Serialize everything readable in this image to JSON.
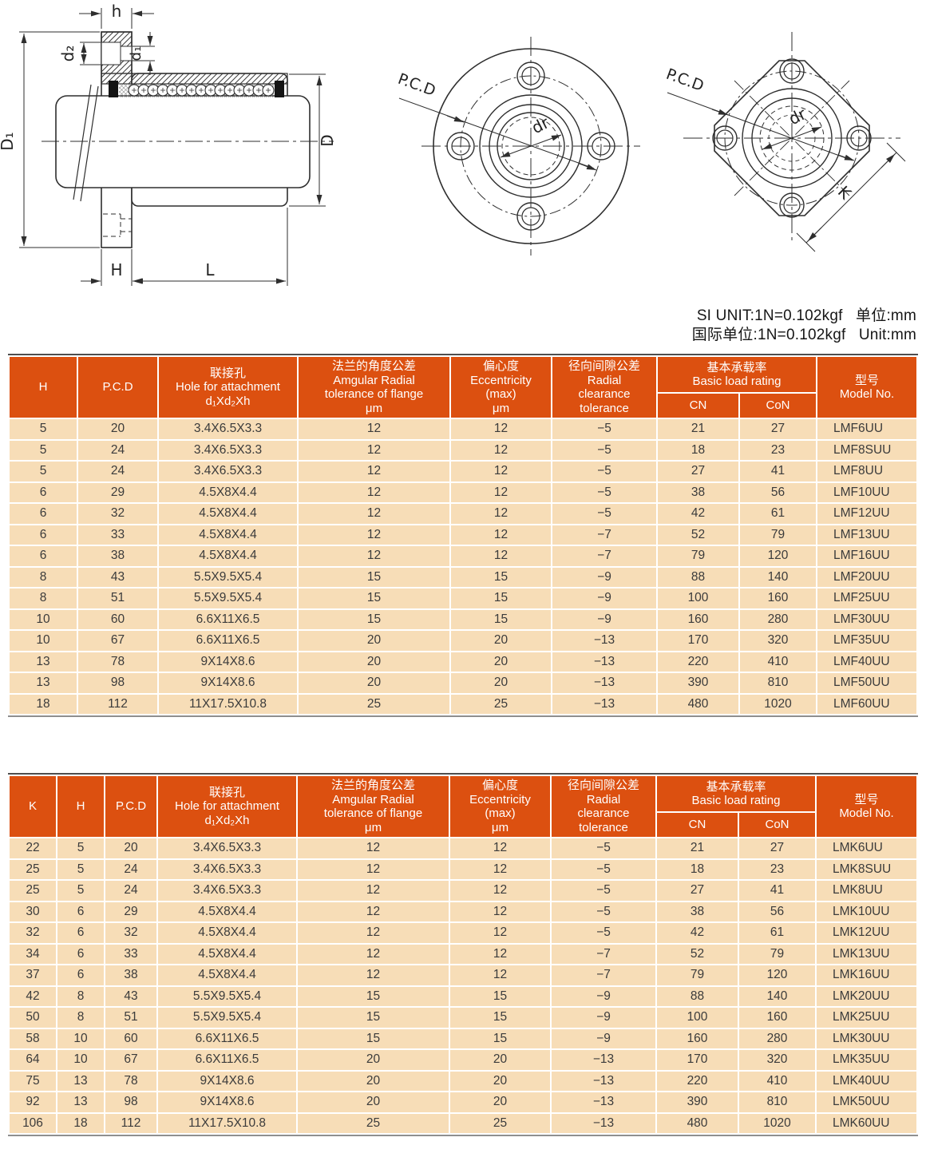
{
  "unit_note": {
    "line1": "SI UNIT:1N=0.102kgf   单位:mm",
    "line2": "国际单位:1N=0.102kgf   Unit:mm"
  },
  "colors": {
    "header_bg": "#DC5010",
    "row_bg": "#F7DDB7",
    "header_text": "#FFFFFF",
    "body_text": "#3B3B3B"
  },
  "drawing_labels": {
    "h": "h",
    "d2": "d₂",
    "d1": "d₁",
    "D1": "D₁",
    "D": "D",
    "H": "H",
    "L": "L",
    "pcd_round": "P.C.D",
    "dr_round": "dr",
    "pcd_square": "P.C.D",
    "dr_square": "dr",
    "K": "K"
  },
  "table_lmf": {
    "columns": {
      "h": "H",
      "pcd": "P.C.D",
      "hole": "联接孔\nHole for attachment\nd₁Xd₂Xh",
      "angular": "法兰的角度公差\nAmgular Radial\ntolerance of flange\nμm",
      "eccentricity": "偏心度\nEccentricity\n(max)\nμm",
      "radial": "径向间隙公差\nRadial\nclearance\ntolerance",
      "basic_load": "基本承载率\nBasic load rating",
      "cn": "CN",
      "con": "CoN",
      "model": "型号\nModel No."
    },
    "rows": [
      [
        "5",
        "20",
        "3.4X6.5X3.3",
        "12",
        "12",
        "−5",
        "21",
        "27",
        "LMF6UU"
      ],
      [
        "5",
        "24",
        "3.4X6.5X3.3",
        "12",
        "12",
        "−5",
        "18",
        "23",
        "LMF8SUU"
      ],
      [
        "5",
        "24",
        "3.4X6.5X3.3",
        "12",
        "12",
        "−5",
        "27",
        "41",
        "LMF8UU"
      ],
      [
        "6",
        "29",
        "4.5X8X4.4",
        "12",
        "12",
        "−5",
        "38",
        "56",
        "LMF10UU"
      ],
      [
        "6",
        "32",
        "4.5X8X4.4",
        "12",
        "12",
        "−5",
        "42",
        "61",
        "LMF12UU"
      ],
      [
        "6",
        "33",
        "4.5X8X4.4",
        "12",
        "12",
        "−7",
        "52",
        "79",
        "LMF13UU"
      ],
      [
        "6",
        "38",
        "4.5X8X4.4",
        "12",
        "12",
        "−7",
        "79",
        "120",
        "LMF16UU"
      ],
      [
        "8",
        "43",
        "5.5X9.5X5.4",
        "15",
        "15",
        "−9",
        "88",
        "140",
        "LMF20UU"
      ],
      [
        "8",
        "51",
        "5.5X9.5X5.4",
        "15",
        "15",
        "−9",
        "100",
        "160",
        "LMF25UU"
      ],
      [
        "10",
        "60",
        "6.6X11X6.5",
        "15",
        "15",
        "−9",
        "160",
        "280",
        "LMF30UU"
      ],
      [
        "10",
        "67",
        "6.6X11X6.5",
        "20",
        "20",
        "−13",
        "170",
        "320",
        "LMF35UU"
      ],
      [
        "13",
        "78",
        "9X14X8.6",
        "20",
        "20",
        "−13",
        "220",
        "410",
        "LMF40UU"
      ],
      [
        "13",
        "98",
        "9X14X8.6",
        "20",
        "20",
        "−13",
        "390",
        "810",
        "LMF50UU"
      ],
      [
        "18",
        "112",
        "11X17.5X10.8",
        "25",
        "25",
        "−13",
        "480",
        "1020",
        "LMF60UU"
      ]
    ]
  },
  "table_lmk": {
    "columns": {
      "k": "K",
      "h": "H",
      "pcd": "P.C.D",
      "hole": "联接孔\nHole for attachment\nd₁Xd₂Xh",
      "angular": "法兰的角度公差\nAmgular Radial\ntolerance of flange\nμm",
      "eccentricity": "偏心度\nEccentricity\n(max)\nμm",
      "radial": "径向间隙公差\nRadial\nclearance\ntolerance",
      "basic_load": "基本承载率\nBasic load rating",
      "cn": "CN",
      "con": "CoN",
      "model": "型号\nModel No."
    },
    "rows": [
      [
        "22",
        "5",
        "20",
        "3.4X6.5X3.3",
        "12",
        "12",
        "−5",
        "21",
        "27",
        "LMK6UU"
      ],
      [
        "25",
        "5",
        "24",
        "3.4X6.5X3.3",
        "12",
        "12",
        "−5",
        "18",
        "23",
        "LMK8SUU"
      ],
      [
        "25",
        "5",
        "24",
        "3.4X6.5X3.3",
        "12",
        "12",
        "−5",
        "27",
        "41",
        "LMK8UU"
      ],
      [
        "30",
        "6",
        "29",
        "4.5X8X4.4",
        "12",
        "12",
        "−5",
        "38",
        "56",
        "LMK10UU"
      ],
      [
        "32",
        "6",
        "32",
        "4.5X8X4.4",
        "12",
        "12",
        "−5",
        "42",
        "61",
        "LMK12UU"
      ],
      [
        "34",
        "6",
        "33",
        "4.5X8X4.4",
        "12",
        "12",
        "−7",
        "52",
        "79",
        "LMK13UU"
      ],
      [
        "37",
        "6",
        "38",
        "4.5X8X4.4",
        "12",
        "12",
        "−7",
        "79",
        "120",
        "LMK16UU"
      ],
      [
        "42",
        "8",
        "43",
        "5.5X9.5X5.4",
        "15",
        "15",
        "−9",
        "88",
        "140",
        "LMK20UU"
      ],
      [
        "50",
        "8",
        "51",
        "5.5X9.5X5.4",
        "15",
        "15",
        "−9",
        "100",
        "160",
        "LMK25UU"
      ],
      [
        "58",
        "10",
        "60",
        "6.6X11X6.5",
        "15",
        "15",
        "−9",
        "160",
        "280",
        "LMK30UU"
      ],
      [
        "64",
        "10",
        "67",
        "6.6X11X6.5",
        "20",
        "20",
        "−13",
        "170",
        "320",
        "LMK35UU"
      ],
      [
        "75",
        "13",
        "78",
        "9X14X8.6",
        "20",
        "20",
        "−13",
        "220",
        "410",
        "LMK40UU"
      ],
      [
        "92",
        "13",
        "98",
        "9X14X8.6",
        "20",
        "20",
        "−13",
        "390",
        "810",
        "LMK50UU"
      ],
      [
        "106",
        "18",
        "112",
        "11X17.5X10.8",
        "25",
        "25",
        "−13",
        "480",
        "1020",
        "LMK60UU"
      ]
    ]
  }
}
